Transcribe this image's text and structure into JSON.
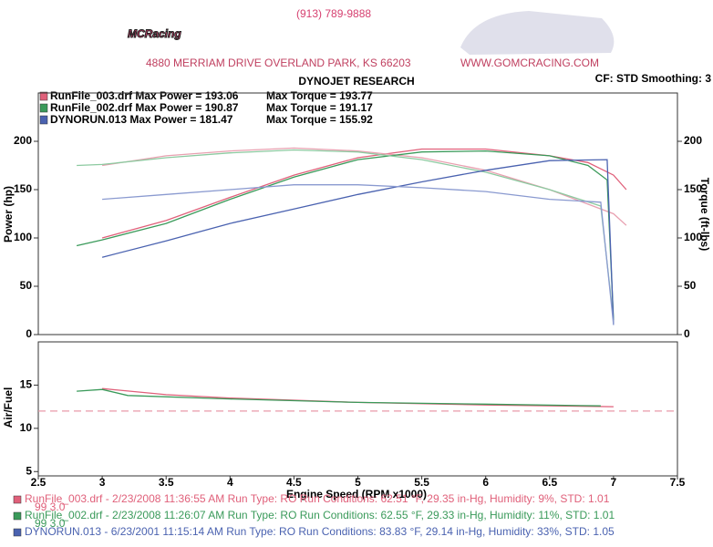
{
  "header": {
    "logo": "MCRacing",
    "phone": "(913) 789-9888",
    "address": "4880 MERRIAM DRIVE   OVERLAND PARK, KS 66203",
    "website": "WWW.GOMCRACING.COM",
    "settings": "CF: STD  Smoothing: 3"
  },
  "legend": [
    {
      "label": "RunFile_003.drf Max Power = 193.06",
      "torque_label": "Max Torque = 193.77",
      "color": "#e0607a"
    },
    {
      "label": "RunFile_002.drf Max Power = 190.87",
      "torque_label": "Max Torque = 191.17",
      "color": "#3a9a5a"
    },
    {
      "label": "DYNORUN.013 Max Power = 181.47",
      "torque_label": "Max Torque = 155.92",
      "color": "#4a62b0"
    }
  ],
  "chart_data": [
    {
      "type": "line",
      "title": "DYNOJET RESEARCH",
      "y_label": "Power (hp)",
      "y2_label": "Torque (ft-lbs)",
      "xlim": [
        2.5,
        7.5
      ],
      "ylim": [
        0,
        250
      ],
      "yticks": [
        0,
        50,
        100,
        150,
        200
      ],
      "y2lim": [
        0,
        250
      ],
      "y2ticks": [
        0,
        50,
        100,
        150,
        200
      ],
      "series": [
        {
          "color": "#e0607a",
          "x": [
            3.0,
            3.5,
            4.0,
            4.5,
            5.0,
            5.5,
            6.0,
            6.5,
            6.8,
            7.0,
            7.1
          ],
          "values": [
            100,
            118,
            142,
            165,
            183,
            192,
            192,
            185,
            178,
            165,
            150
          ]
        },
        {
          "color": "#e8a0b0",
          "axis": "y2",
          "x": [
            3.0,
            3.5,
            4.0,
            4.5,
            5.0,
            5.5,
            6.0,
            6.5,
            7.0,
            7.1
          ],
          "values": [
            175,
            185,
            190,
            193,
            190,
            183,
            170,
            150,
            125,
            113
          ]
        },
        {
          "color": "#3a9a5a",
          "x": [
            2.8,
            3.0,
            3.5,
            4.0,
            4.5,
            5.0,
            5.5,
            6.0,
            6.5,
            6.8,
            6.95,
            7.0
          ],
          "values": [
            92,
            98,
            115,
            140,
            163,
            181,
            189,
            190,
            185,
            175,
            160,
            15
          ]
        },
        {
          "color": "#8ccaa0",
          "axis": "y2",
          "x": [
            2.8,
            3.0,
            3.5,
            4.0,
            4.5,
            5.0,
            5.5,
            6.0,
            6.5,
            6.9,
            7.0
          ],
          "values": [
            175,
            176,
            183,
            188,
            191,
            189,
            181,
            168,
            150,
            133,
            15
          ]
        },
        {
          "color": "#4a62b0",
          "x": [
            3.0,
            3.5,
            4.0,
            4.5,
            5.0,
            5.5,
            6.0,
            6.5,
            6.95,
            7.0
          ],
          "values": [
            80,
            97,
            115,
            130,
            145,
            158,
            170,
            180,
            181,
            10
          ]
        },
        {
          "color": "#8a9ad0",
          "axis": "y2",
          "x": [
            3.0,
            3.5,
            4.0,
            4.5,
            5.0,
            5.5,
            6.0,
            6.5,
            6.9,
            7.0
          ],
          "values": [
            140,
            145,
            150,
            155,
            155,
            152,
            148,
            140,
            137,
            10
          ]
        }
      ]
    },
    {
      "type": "line",
      "y_label": "Air/Fuel",
      "x_label": "Engine Speed (RPM x1000)",
      "xlim": [
        2.5,
        7.5
      ],
      "xticks": [
        2.5,
        3.0,
        3.5,
        4.0,
        4.5,
        5.0,
        5.5,
        6.0,
        6.5,
        7.0,
        7.5
      ],
      "ylim": [
        4.5,
        20
      ],
      "yticks": [
        5,
        10,
        15
      ],
      "reference_line": 12,
      "series": [
        {
          "color": "#e0607a",
          "x": [
            3.0,
            3.5,
            4.0,
            5.0,
            6.0,
            7.0
          ],
          "values": [
            14.6,
            13.9,
            13.5,
            13.0,
            12.7,
            12.5
          ]
        },
        {
          "color": "#3a9a5a",
          "x": [
            2.8,
            3.0,
            3.2,
            4.0,
            5.0,
            6.0,
            6.9
          ],
          "values": [
            14.3,
            14.5,
            13.8,
            13.4,
            13.0,
            12.8,
            12.6
          ]
        }
      ]
    }
  ],
  "footer": [
    {
      "text": "RunFile_003.drf - 2/23/2008 11:36:55 AM  Run Type: RO  Run Conditions: 62.51 °F, 29.35 in-Hg,  Humidity: 9%,  STD: 1.01",
      "text2": "99 3.0",
      "color": "#e0607a"
    },
    {
      "text": "RunFile_002.drf - 2/23/2008 11:26:07 AM  Run Type: RO  Run Conditions: 62.55 °F, 29.33 in-Hg,  Humidity: 11%,  STD: 1.01",
      "text2": "99 3.0",
      "color": "#3a9a5a"
    },
    {
      "text": "DYNORUN.013 - 6/23/2001 11:15:14 AM  Run Type: RO  Run Conditions: 83.83 °F, 29.14 in-Hg,  Humidity: 33%,  STD: 1.05",
      "color": "#4a62b0"
    }
  ]
}
